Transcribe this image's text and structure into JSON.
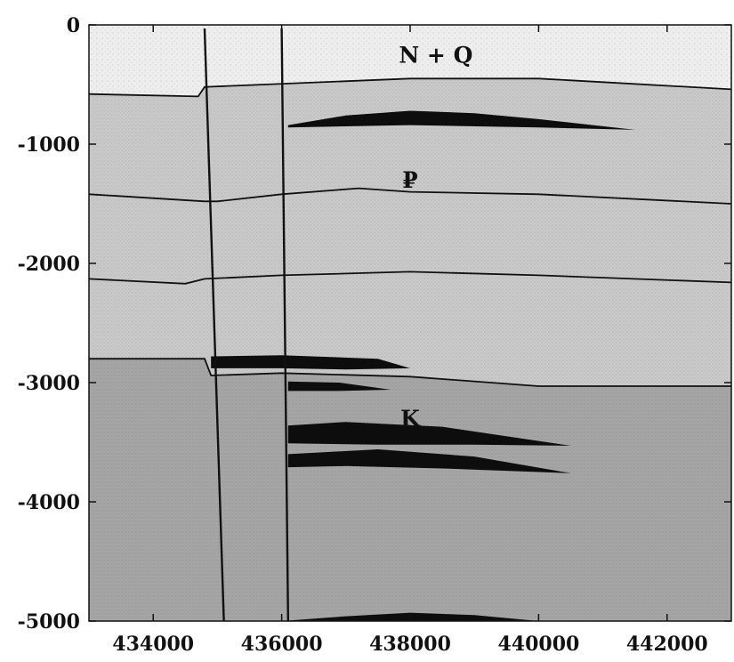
{
  "chart_data": {
    "type": "geologic-cross-section",
    "x_ticks": [
      434000,
      436000,
      438000,
      440000,
      442000
    ],
    "y_ticks": [
      0,
      -1000,
      -2000,
      -3000,
      -4000,
      -5000
    ],
    "xlim": [
      433000,
      443000
    ],
    "ylim": [
      -5000,
      0
    ],
    "grid": false,
    "units": [
      {
        "label": "N + Q",
        "x": 438400,
        "y": -250,
        "fill": "#eeeeee"
      },
      {
        "label": "₽",
        "x": 438000,
        "y": -1300,
        "fill": "#cbcbcb"
      },
      {
        "label": "K",
        "x": 438000,
        "y": -3300,
        "fill": "#a6a6a6"
      }
    ],
    "horizons": [
      {
        "name": "top-paleogene",
        "points": [
          [
            433000,
            -580
          ],
          [
            434700,
            -600
          ],
          [
            434800,
            -520
          ],
          [
            438000,
            -450
          ],
          [
            440000,
            -450
          ],
          [
            441000,
            -480
          ],
          [
            443000,
            -540
          ]
        ]
      },
      {
        "name": "intra-paleogene-1",
        "points": [
          [
            433000,
            -1420
          ],
          [
            434800,
            -1480
          ],
          [
            435000,
            -1480
          ],
          [
            436000,
            -1420
          ],
          [
            437200,
            -1370
          ],
          [
            438000,
            -1400
          ],
          [
            440000,
            -1420
          ],
          [
            443000,
            -1500
          ]
        ]
      },
      {
        "name": "intra-paleogene-2",
        "points": [
          [
            433000,
            -2130
          ],
          [
            434500,
            -2170
          ],
          [
            434800,
            -2130
          ],
          [
            436000,
            -2100
          ],
          [
            438000,
            -2070
          ],
          [
            440000,
            -2100
          ],
          [
            443000,
            -2160
          ]
        ]
      },
      {
        "name": "top-cretaceous",
        "points": [
          [
            433000,
            -2800
          ],
          [
            434800,
            -2800
          ],
          [
            434900,
            -2940
          ],
          [
            436000,
            -2920
          ],
          [
            438000,
            -2950
          ],
          [
            440000,
            -3030
          ],
          [
            443000,
            -3030
          ]
        ]
      }
    ],
    "wells": [
      {
        "x_top": 434800,
        "x_bottom": 435100
      },
      {
        "x_top": 436000,
        "x_bottom": 436100
      }
    ],
    "deposits": [
      {
        "points": [
          [
            436100,
            -840
          ],
          [
            437000,
            -760
          ],
          [
            438000,
            -720
          ],
          [
            439000,
            -740
          ],
          [
            440000,
            -790
          ],
          [
            441500,
            -880
          ],
          [
            440000,
            -860
          ],
          [
            438000,
            -840
          ],
          [
            436100,
            -860
          ]
        ]
      },
      {
        "points": [
          [
            434900,
            -2780
          ],
          [
            436000,
            -2770
          ],
          [
            437500,
            -2800
          ],
          [
            438000,
            -2880
          ],
          [
            437000,
            -2890
          ],
          [
            436000,
            -2880
          ],
          [
            434900,
            -2880
          ]
        ]
      },
      {
        "points": [
          [
            436100,
            -2990
          ],
          [
            436900,
            -3000
          ],
          [
            437700,
            -3060
          ],
          [
            436900,
            -3070
          ],
          [
            436100,
            -3070
          ]
        ]
      },
      {
        "points": [
          [
            436100,
            -3360
          ],
          [
            437000,
            -3330
          ],
          [
            438500,
            -3370
          ],
          [
            440500,
            -3530
          ],
          [
            439000,
            -3520
          ],
          [
            437500,
            -3520
          ],
          [
            436100,
            -3510
          ]
        ]
      },
      {
        "points": [
          [
            436100,
            -3600
          ],
          [
            437500,
            -3560
          ],
          [
            439000,
            -3620
          ],
          [
            440500,
            -3760
          ],
          [
            438500,
            -3720
          ],
          [
            437000,
            -3700
          ],
          [
            436100,
            -3710
          ]
        ]
      },
      {
        "points": [
          [
            436000,
            -5000
          ],
          [
            437000,
            -4960
          ],
          [
            438000,
            -4930
          ],
          [
            439000,
            -4950
          ],
          [
            440000,
            -5000
          ]
        ]
      }
    ],
    "colors": {
      "line": "#111111",
      "deposit": "#0d0d0d"
    }
  }
}
